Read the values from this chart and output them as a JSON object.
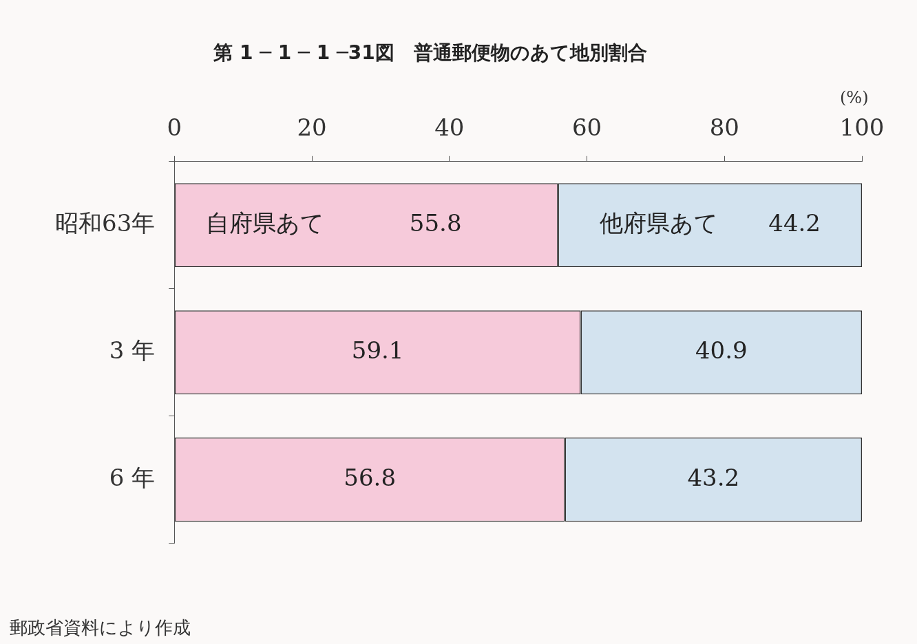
{
  "chart_data": {
    "type": "bar",
    "orientation": "horizontal",
    "stacked": true,
    "title": "第 1 ─ 1 ─ 1 ─31図　普通郵便物のあて地別割合",
    "xlabel": "(%)",
    "categories": [
      "昭和63年",
      "3 年",
      "6 年"
    ],
    "series": [
      {
        "name": "自府県あて",
        "color": "#f6cada",
        "values": [
          55.8,
          59.1,
          56.8
        ]
      },
      {
        "name": "他府県あて",
        "color": "#d3e3ef",
        "values": [
          44.2,
          40.9,
          43.2
        ]
      }
    ],
    "xlim": [
      0,
      100
    ],
    "xticks": [
      0,
      20,
      40,
      60,
      80,
      100
    ],
    "grid": false,
    "legend": false,
    "data_labels": true,
    "annotations": [
      "郵政省資料により作成"
    ]
  }
}
